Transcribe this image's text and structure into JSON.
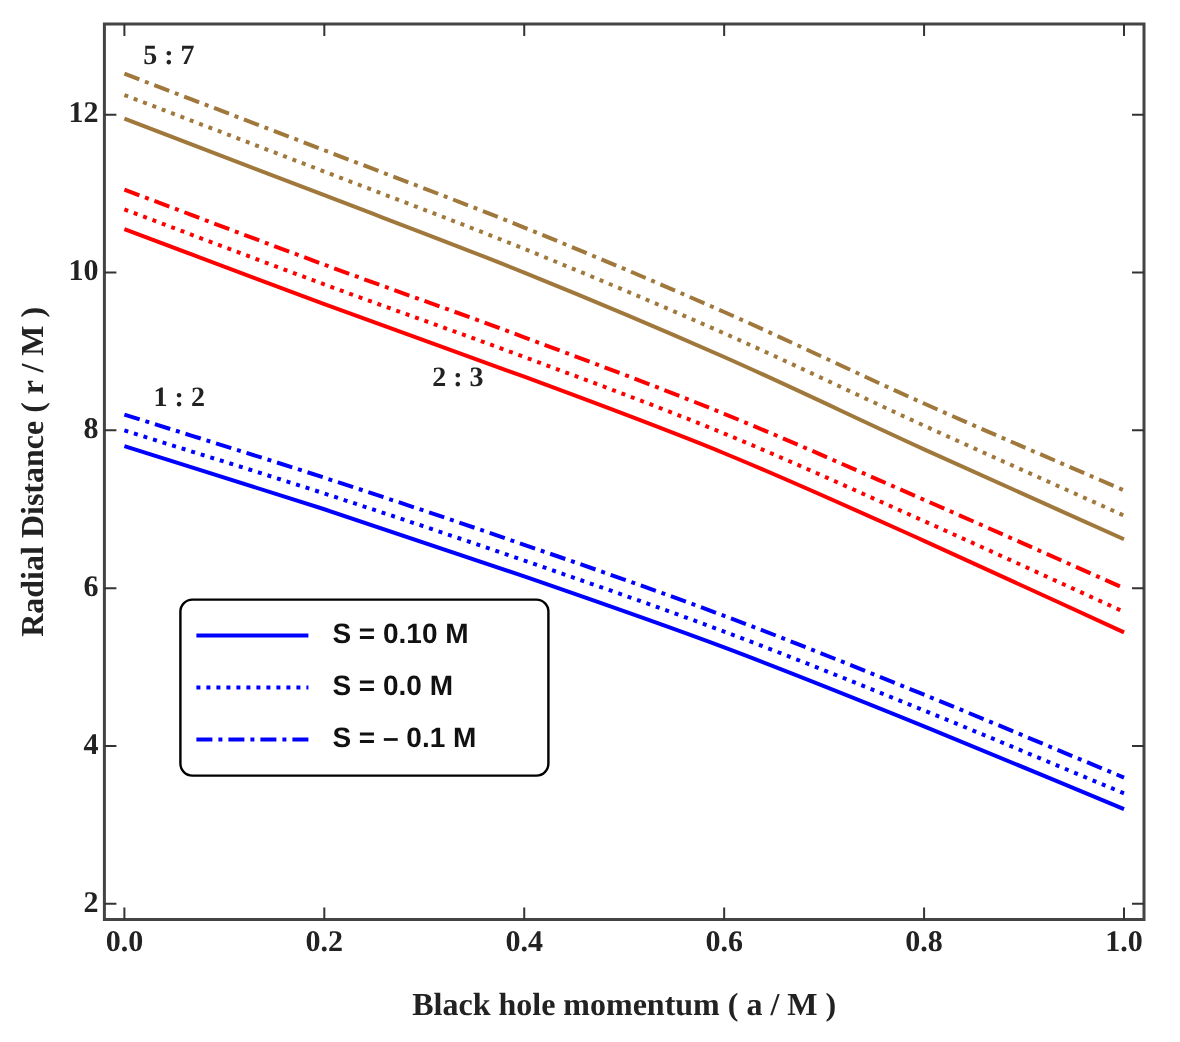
{
  "chart_data": {
    "type": "line",
    "xlabel": "Black hole momentum ( a / M )",
    "ylabel": "Radial Distance ( r / M )",
    "x": [
      0,
      0.2,
      0.4,
      0.6,
      0.8,
      1.0
    ],
    "xlim": [
      -0.02,
      1.02
    ],
    "xticks": [
      {
        "value": 0,
        "label": "0.0"
      },
      {
        "value": 0.2,
        "label": "0.2"
      },
      {
        "value": 0.4,
        "label": "0.4"
      },
      {
        "value": 0.6,
        "label": "0.6"
      },
      {
        "value": 0.8,
        "label": "0.8"
      },
      {
        "value": 1,
        "label": "1.0"
      }
    ],
    "ylim": [
      1.8,
      13.15
    ],
    "yticks": [
      2,
      4,
      6,
      8,
      10,
      12
    ],
    "grid": false,
    "legend": "bottom left",
    "marker": "none",
    "series": [
      {
        "name": "S = 0.10 M",
        "color": "#0000ff",
        "line_style": "solid",
        "values": [
          7.8,
          7.0,
          6.15,
          5.25,
          4.25,
          3.2
        ]
      },
      {
        "name": "S = 0.0 M",
        "color": "#0000ff",
        "line_style": "dotted",
        "values": [
          8.0,
          7.2,
          6.35,
          5.45,
          4.45,
          3.4
        ]
      },
      {
        "name": "S = – 0.1 M",
        "color": "#0000ff",
        "line_style": "dashdot",
        "values": [
          8.2,
          7.4,
          6.55,
          5.65,
          4.65,
          3.6
        ]
      },
      {
        "color": "#ff0000",
        "line_style": "solid",
        "values": [
          10.55,
          9.6,
          8.68,
          7.71,
          6.6,
          5.44
        ]
      },
      {
        "color": "#ff0000",
        "line_style": "dotted",
        "values": [
          10.8,
          9.85,
          8.93,
          7.96,
          6.85,
          5.7
        ]
      },
      {
        "color": "#ff0000",
        "line_style": "dashdot",
        "values": [
          11.05,
          10.1,
          9.18,
          8.21,
          7.12,
          6.0
        ]
      },
      {
        "color": "#a0783c",
        "line_style": "solid",
        "values": [
          11.95,
          10.98,
          10.0,
          8.93,
          7.76,
          6.62
        ]
      },
      {
        "color": "#a0783c",
        "line_style": "dotted",
        "values": [
          12.25,
          11.28,
          10.3,
          9.23,
          8.06,
          6.92
        ]
      },
      {
        "color": "#a0783c",
        "line_style": "dashdot",
        "values": [
          12.52,
          11.55,
          10.57,
          9.5,
          8.34,
          7.24
        ]
      }
    ],
    "annotations": [
      "5 : 7",
      "1 : 2",
      "2 : 3"
    ]
  }
}
